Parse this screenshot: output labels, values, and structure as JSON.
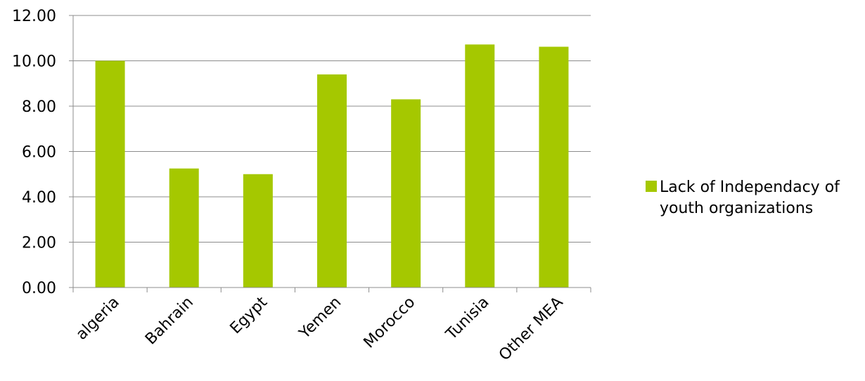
{
  "chart_data": {
    "type": "bar",
    "title": "",
    "xlabel": "",
    "ylabel": "",
    "categories": [
      "algeria",
      "Bahrain",
      "Egypt",
      "Yemen",
      "Morocco",
      "Tunisia",
      "Other MEA"
    ],
    "series": [
      {
        "name": "Lack of Independacy of youth organizations",
        "values": [
          10.0,
          5.25,
          5.0,
          9.4,
          8.3,
          10.72,
          10.62
        ],
        "color": "#a5c800"
      }
    ],
    "ylim": [
      0,
      12
    ],
    "yticks": [
      "0.00",
      "2.00",
      "4.00",
      "6.00",
      "8.00",
      "10.00",
      "12.00"
    ],
    "grid": true,
    "legend_position": "right"
  }
}
